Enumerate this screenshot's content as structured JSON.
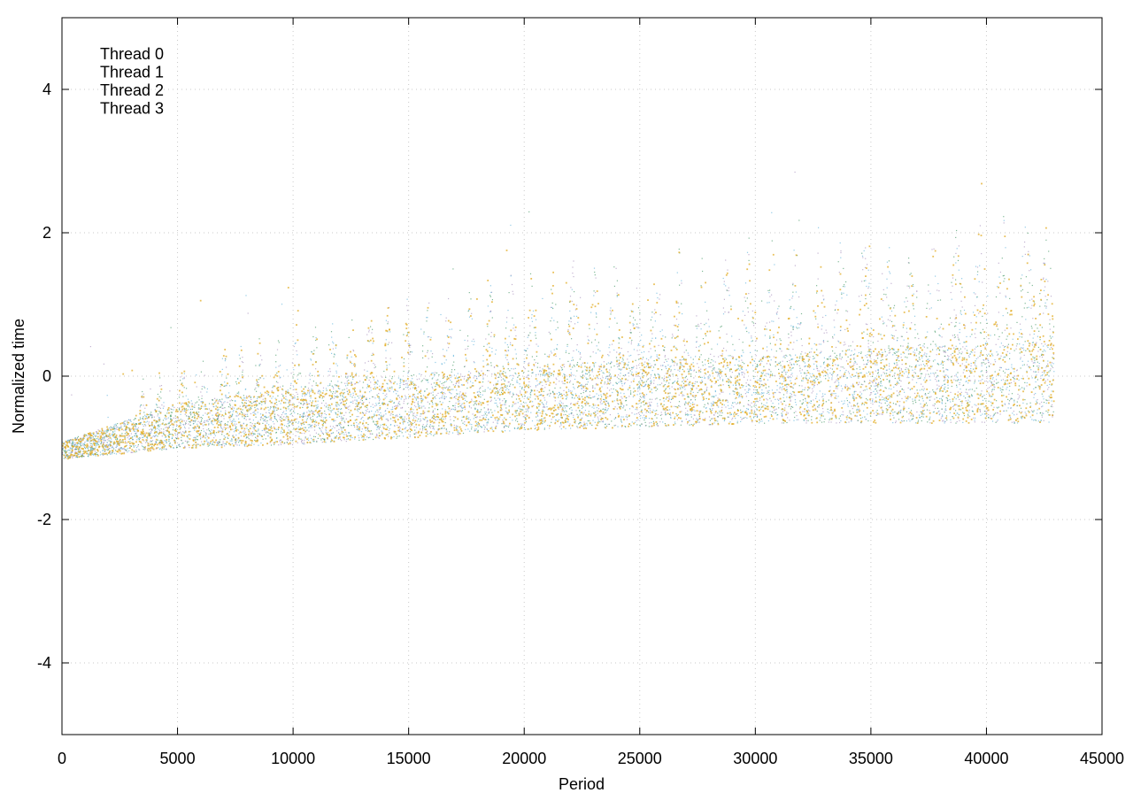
{
  "chart_data": {
    "type": "scatter",
    "title": "",
    "xlabel": "Period",
    "ylabel": "Normalized time",
    "xlim": [
      0,
      45000
    ],
    "ylim": [
      -5,
      5
    ],
    "x_ticks": [
      0,
      5000,
      10000,
      15000,
      20000,
      25000,
      30000,
      35000,
      40000,
      45000
    ],
    "x_tick_labels": [
      "0",
      "5000",
      "10000",
      "15000",
      "20000",
      "25000",
      "30000",
      "35000",
      "40000",
      "45000"
    ],
    "y_ticks": [
      -4,
      -2,
      0,
      2,
      4
    ],
    "y_tick_labels": [
      "-4",
      "-2",
      "0",
      "2",
      "4"
    ],
    "grid": true,
    "legend_position": "top-left",
    "series": [
      {
        "name": "Thread 0",
        "color": "#9b7fb3"
      },
      {
        "name": "Thread 1",
        "color": "#2a8a50"
      },
      {
        "name": "Thread 2",
        "color": "#4aa6d6"
      },
      {
        "name": "Thread 3",
        "color": "#e2ab22"
      }
    ],
    "data_x_range": [
      0,
      42900
    ],
    "trend": {
      "periods": [
        0,
        5000,
        10000,
        15000,
        20000,
        25000,
        30000,
        35000,
        40000,
        42900
      ],
      "baseline": [
        -1.15,
        -1.0,
        -0.95,
        -0.85,
        -0.75,
        -0.7,
        -0.65,
        -0.65,
        -0.65,
        -0.65
      ],
      "center": [
        -1.0,
        -0.6,
        -0.45,
        -0.3,
        -0.2,
        -0.1,
        -0.05,
        0.0,
        0.05,
        0.05
      ],
      "spike_top": [
        -0.7,
        0.3,
        0.8,
        1.2,
        1.6,
        1.8,
        2.0,
        2.2,
        2.3,
        2.4
      ]
    },
    "spike_periods": [
      3500,
      4200,
      5200,
      6100,
      7000,
      7700,
      8500,
      9300,
      10100,
      10900,
      11700,
      12500,
      13300,
      14100,
      14900,
      15800,
      16700,
      17600,
      18500,
      19400,
      20300,
      21200,
      22100,
      23000,
      23900,
      24800,
      25700,
      26700,
      27700,
      28700,
      29700,
      30700,
      31700,
      32700,
      33700,
      34700,
      35700,
      36700,
      37700,
      38700,
      39700,
      40700,
      41700,
      42600
    ]
  }
}
